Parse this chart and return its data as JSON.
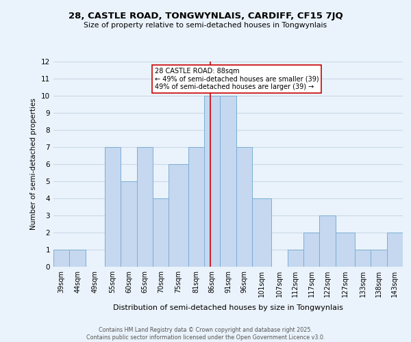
{
  "title_line1": "28, CASTLE ROAD, TONGWYNLAIS, CARDIFF, CF15 7JQ",
  "title_line2": "Size of property relative to semi-detached houses in Tongwynlais",
  "bar_labels": [
    "39sqm",
    "44sqm",
    "49sqm",
    "55sqm",
    "60sqm",
    "65sqm",
    "70sqm",
    "75sqm",
    "81sqm",
    "86sqm",
    "91sqm",
    "96sqm",
    "101sqm",
    "107sqm",
    "112sqm",
    "117sqm",
    "122sqm",
    "127sqm",
    "133sqm",
    "138sqm",
    "143sqm"
  ],
  "bar_values": [
    1,
    1,
    0,
    7,
    5,
    7,
    4,
    6,
    7,
    10,
    10,
    7,
    4,
    0,
    1,
    2,
    3,
    2,
    1,
    1,
    2
  ],
  "bar_edges": [
    39,
    44,
    49,
    55,
    60,
    65,
    70,
    75,
    81,
    86,
    91,
    96,
    101,
    107,
    112,
    117,
    122,
    127,
    133,
    138,
    143,
    148
  ],
  "bar_color": "#c5d8f0",
  "bar_edgecolor": "#7badd4",
  "grid_color": "#c8d8e8",
  "background_color": "#eaf3fb",
  "ylabel": "Number of semi-detached properties",
  "xlabel": "Distribution of semi-detached houses by size in Tongwynlais",
  "ylim": [
    0,
    12
  ],
  "yticks": [
    0,
    1,
    2,
    3,
    4,
    5,
    6,
    7,
    8,
    9,
    10,
    11,
    12
  ],
  "vline_x": 88,
  "vline_color": "#cc0000",
  "annotation_title": "28 CASTLE ROAD: 88sqm",
  "annotation_line2": "← 49% of semi-detached houses are smaller (39)",
  "annotation_line3": "49% of semi-detached houses are larger (39) →",
  "footer_line1": "Contains HM Land Registry data © Crown copyright and database right 2025.",
  "footer_line2": "Contains public sector information licensed under the Open Government Licence v3.0."
}
